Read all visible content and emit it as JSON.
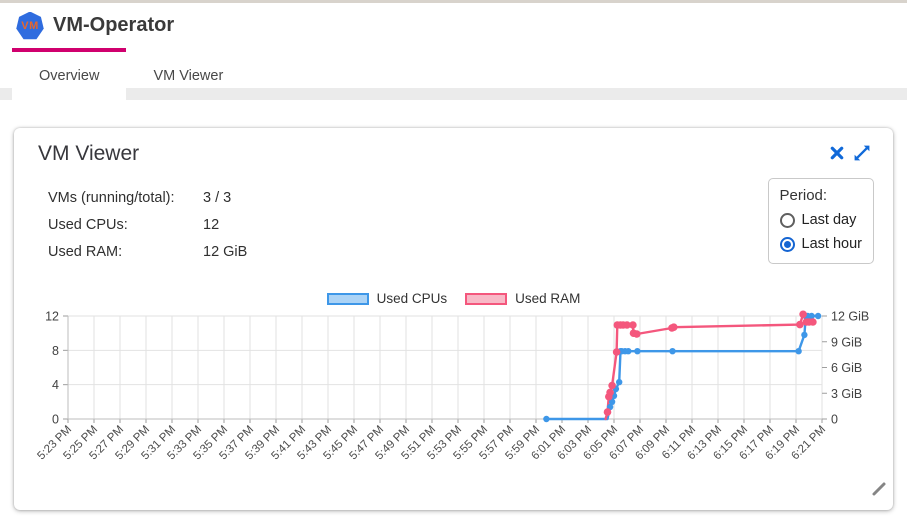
{
  "header": {
    "title": "VM-Operator",
    "logo_text": "VM"
  },
  "tabs": [
    {
      "label": "Overview",
      "active": true
    },
    {
      "label": "VM Viewer",
      "active": false
    }
  ],
  "card": {
    "title": "VM Viewer",
    "stats": [
      {
        "label": "VMs (running/total):",
        "value": "3 / 3"
      },
      {
        "label": "Used CPUs:",
        "value": "12"
      },
      {
        "label": "Used RAM:",
        "value": "12 GiB"
      }
    ],
    "period": {
      "label": "Period:",
      "options": [
        {
          "label": "Last day",
          "selected": false
        },
        {
          "label": "Last hour",
          "selected": true
        }
      ]
    }
  },
  "colors": {
    "accent_blue": "#1069d9",
    "tab_accent": "#d0006e",
    "cpu_line": "#3e97e8",
    "cpu_fill": "#abd3f6",
    "ram_line": "#f4577d",
    "ram_fill": "#f8b9c7",
    "grid": "#e2e2e2",
    "axis": "#bdbdbd"
  },
  "chart_data": {
    "type": "line",
    "title": "",
    "legend_position": "top",
    "grid": true,
    "time_note": "t = minutes after 5:23 PM, 2 min per tick",
    "x_axis": {
      "start": "5:23 PM",
      "end": "6:21 PM",
      "labels": [
        "5:23 PM",
        "5:25 PM",
        "5:27 PM",
        "5:29 PM",
        "5:31 PM",
        "5:33 PM",
        "5:35 PM",
        "5:37 PM",
        "5:39 PM",
        "5:41 PM",
        "5:43 PM",
        "5:45 PM",
        "5:47 PM",
        "5:49 PM",
        "5:51 PM",
        "5:53 PM",
        "5:55 PM",
        "5:57 PM",
        "5:59 PM",
        "6:01 PM",
        "6:03 PM",
        "6:05 PM",
        "6:07 PM",
        "6:09 PM",
        "6:11 PM",
        "6:13 PM",
        "6:15 PM",
        "6:17 PM",
        "6:19 PM",
        "6:21 PM"
      ]
    },
    "y_left": {
      "label": "Used CPUs",
      "ticks": [
        0,
        4,
        8,
        12
      ],
      "range": [
        0,
        12
      ]
    },
    "y_right": {
      "label": "Used RAM",
      "ticks": [
        "0",
        "3 GiB",
        "6 GiB",
        "9 GiB",
        "12 GiB"
      ],
      "range": [
        0,
        12
      ]
    },
    "legend": [
      {
        "name": "Used CPUs",
        "color": "#3e97e8",
        "fill": "#abd3f6"
      },
      {
        "name": "Used RAM",
        "color": "#f4577d",
        "fill": "#f8b9c7"
      }
    ],
    "series": [
      {
        "name": "Used CPUs",
        "axis": "left",
        "color": "#3e97e8",
        "dot_r": 3.2,
        "points": [
          [
            36.8,
            0
          ],
          [
            41.5,
            0,
            0
          ],
          [
            41.7,
            1.4
          ],
          [
            41.85,
            2.0
          ],
          [
            42.0,
            2.7
          ],
          [
            42.15,
            3.5
          ],
          [
            42.4,
            4.3
          ],
          [
            42.5,
            7.9
          ],
          [
            42.6,
            7.9
          ],
          [
            42.85,
            7.9
          ],
          [
            43.1,
            7.9
          ],
          [
            43.8,
            7.9
          ],
          [
            46.5,
            7.9
          ],
          [
            56.2,
            7.9
          ],
          [
            56.65,
            9.8
          ],
          [
            56.75,
            12.0
          ],
          [
            56.9,
            12.0
          ],
          [
            57.2,
            12.0
          ],
          [
            57.7,
            12.0
          ]
        ]
      },
      {
        "name": "Used RAM",
        "axis": "right",
        "color": "#f4577d",
        "dot_r": 3.8,
        "points": [
          [
            41.35,
            0,
            0
          ],
          [
            41.5,
            0.8
          ],
          [
            41.6,
            2.6
          ],
          [
            41.7,
            3.1
          ],
          [
            41.85,
            3.9
          ],
          [
            42.2,
            7.8
          ],
          [
            42.25,
            10.95
          ],
          [
            42.5,
            10.95
          ],
          [
            42.7,
            10.95
          ],
          [
            43.0,
            10.95
          ],
          [
            43.45,
            10.95
          ],
          [
            43.5,
            10.0
          ],
          [
            43.75,
            9.9
          ],
          [
            46.45,
            10.6
          ],
          [
            46.6,
            10.7
          ],
          [
            56.3,
            11.0
          ],
          [
            56.55,
            12.2
          ],
          [
            56.8,
            11.3
          ],
          [
            57.0,
            11.3
          ],
          [
            57.3,
            11.3
          ]
        ]
      }
    ]
  }
}
